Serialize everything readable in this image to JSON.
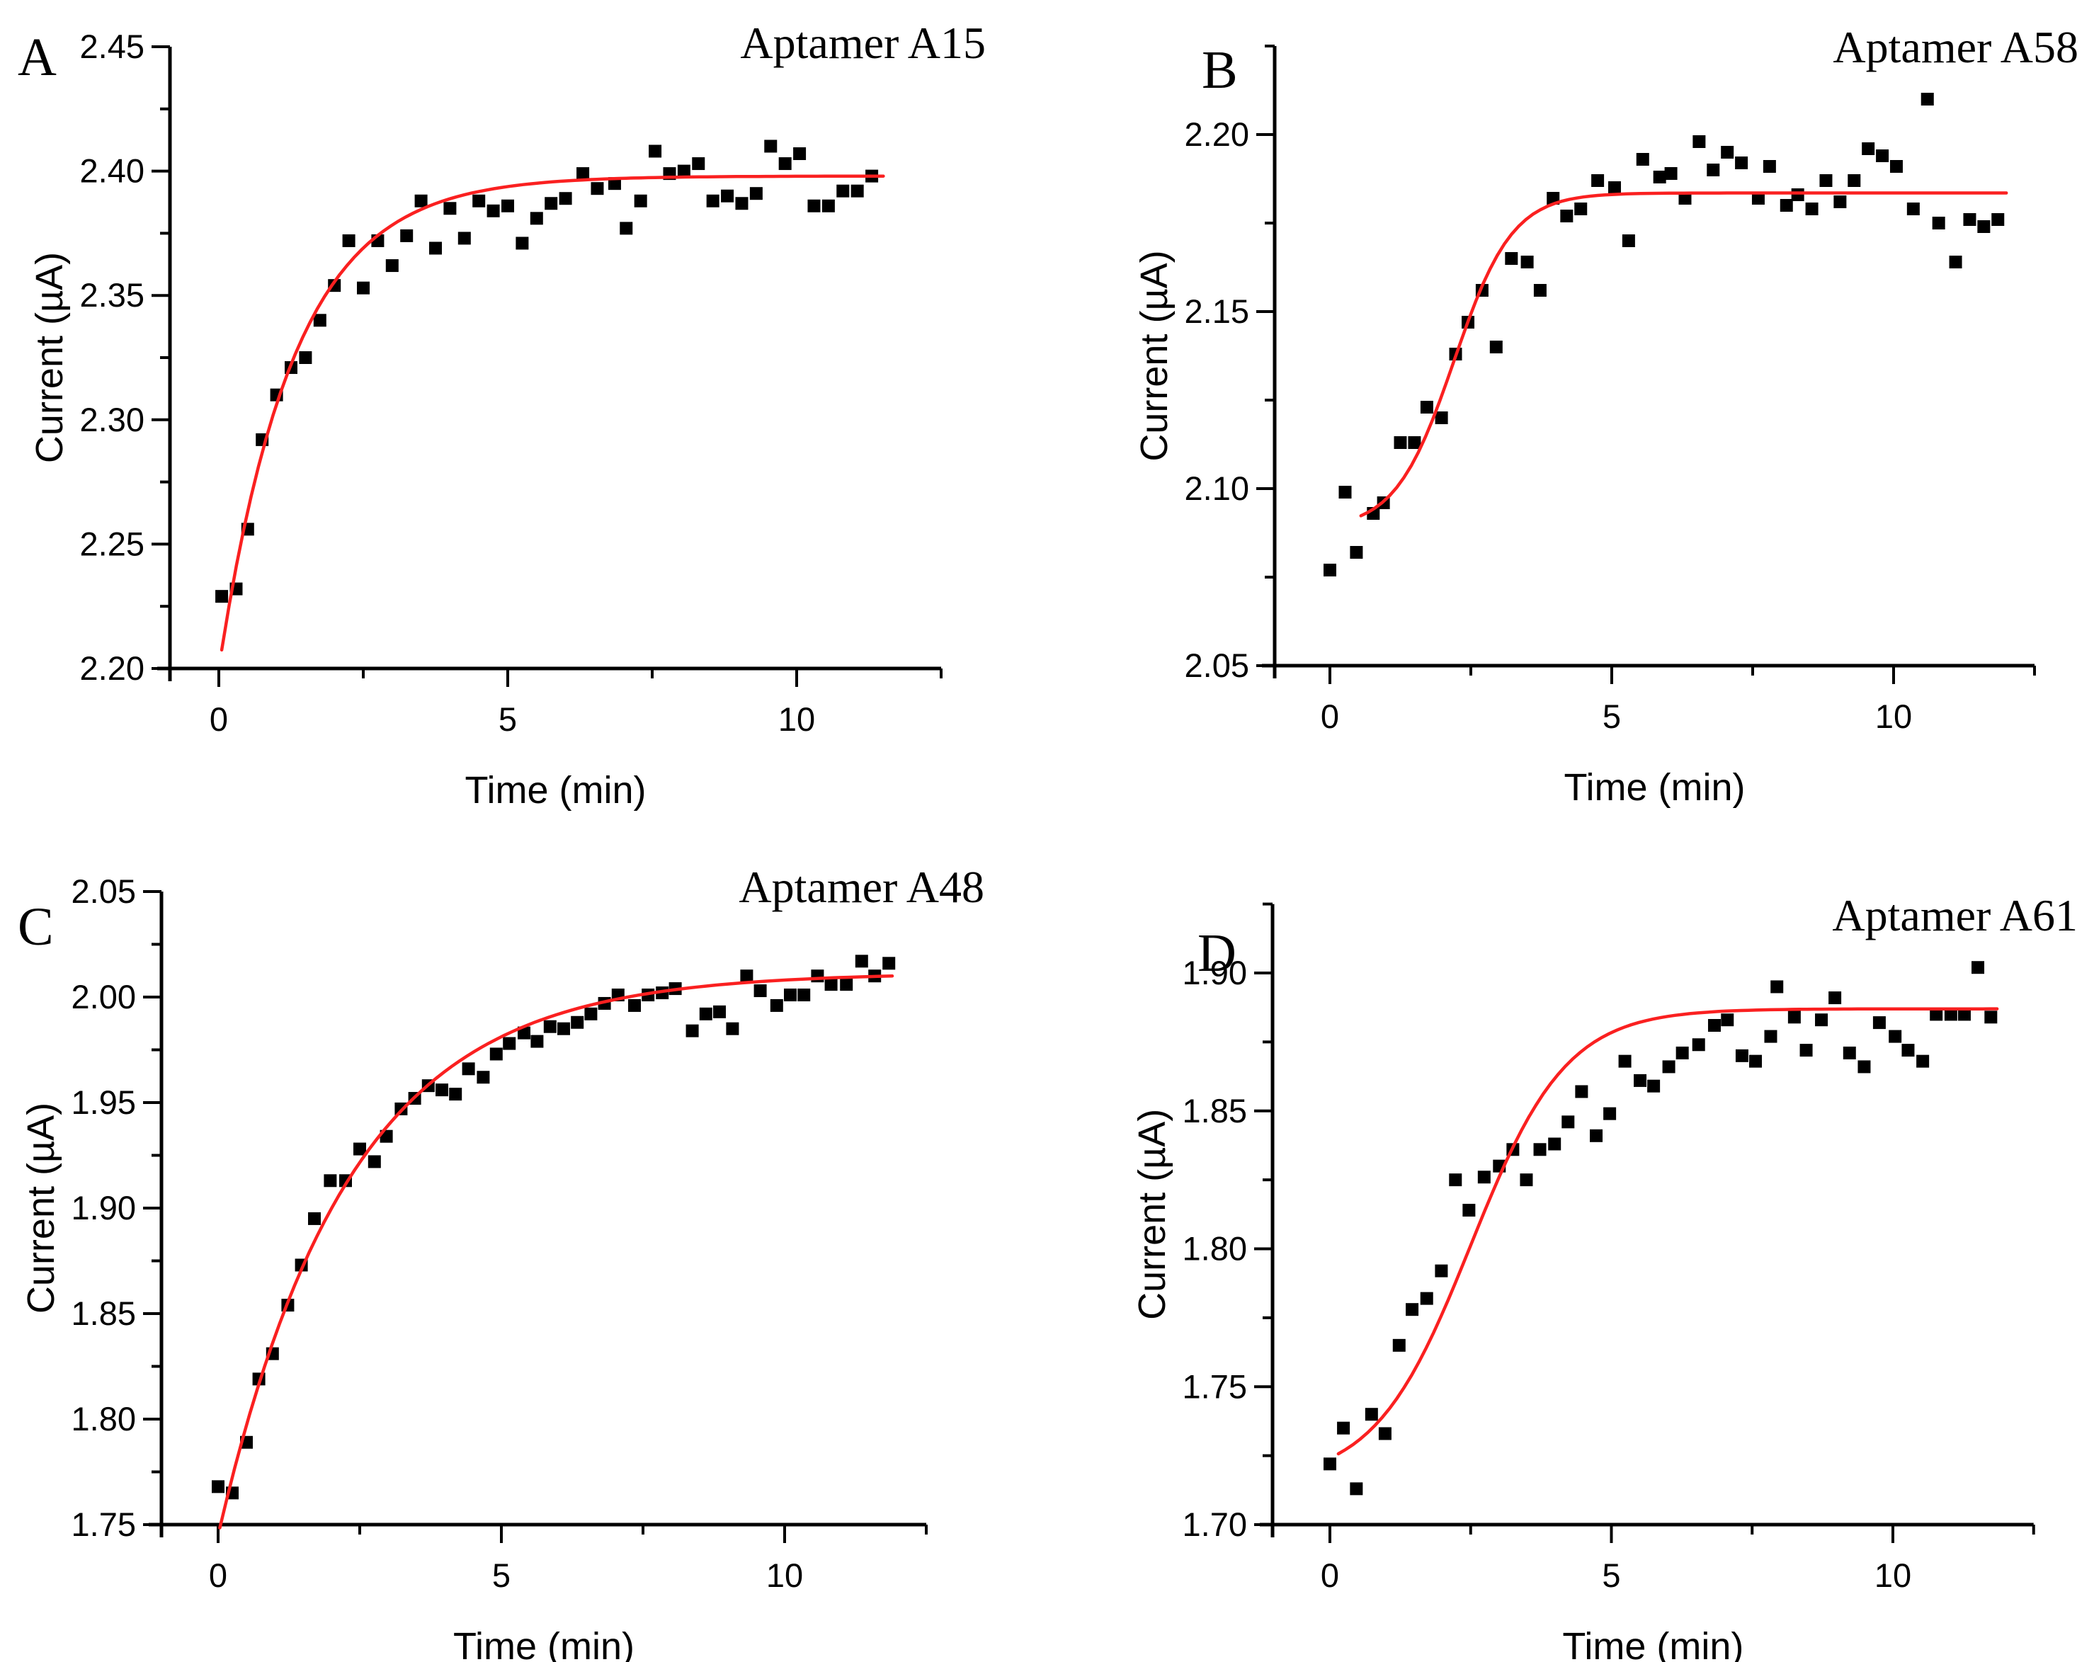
{
  "chart_data": [
    {
      "panel_label": "A",
      "title": "Aptamer A15",
      "type": "scatter",
      "xlabel": "Time (min)",
      "ylabel": "Current (µA)",
      "x_ticks": [
        0,
        5,
        10
      ],
      "x_minor_ticks": [
        2.5,
        7.5,
        12.5
      ],
      "xlim": [
        -0.85,
        12.5
      ],
      "y_ticks": [
        "2.20",
        "2.25",
        "2.30",
        "2.35",
        "2.40",
        "2.45"
      ],
      "y_minor_step": 0.025,
      "ylim": [
        2.2,
        2.45
      ],
      "marker_color": "#000000",
      "fit_line_color": "#fa2020",
      "fit": {
        "model": "exponential",
        "y0": 2.2,
        "plateau": 2.398,
        "tau": 1.3,
        "t_start": 0.05,
        "t_end": 11.5
      },
      "points": [
        [
          0.05,
          2.229
        ],
        [
          0.3,
          2.232
        ],
        [
          0.5,
          2.256
        ],
        [
          0.75,
          2.292
        ],
        [
          1.0,
          2.31
        ],
        [
          1.25,
          2.321
        ],
        [
          1.5,
          2.325
        ],
        [
          1.75,
          2.34
        ],
        [
          2.0,
          2.354
        ],
        [
          2.25,
          2.372
        ],
        [
          2.5,
          2.353
        ],
        [
          2.75,
          2.372
        ],
        [
          3.0,
          2.362
        ],
        [
          3.25,
          2.374
        ],
        [
          3.5,
          2.388
        ],
        [
          3.75,
          2.369
        ],
        [
          4.0,
          2.385
        ],
        [
          4.25,
          2.373
        ],
        [
          4.5,
          2.388
        ],
        [
          4.75,
          2.384
        ],
        [
          5.0,
          2.386
        ],
        [
          5.25,
          2.371
        ],
        [
          5.5,
          2.381
        ],
        [
          5.75,
          2.387
        ],
        [
          6.0,
          2.389
        ],
        [
          6.3,
          2.399
        ],
        [
          6.55,
          2.393
        ],
        [
          6.85,
          2.395
        ],
        [
          7.05,
          2.377
        ],
        [
          7.3,
          2.388
        ],
        [
          7.55,
          2.408
        ],
        [
          7.8,
          2.399
        ],
        [
          8.05,
          2.4
        ],
        [
          8.3,
          2.403
        ],
        [
          8.55,
          2.388
        ],
        [
          8.8,
          2.39
        ],
        [
          9.05,
          2.387
        ],
        [
          9.3,
          2.391
        ],
        [
          9.55,
          2.41
        ],
        [
          9.8,
          2.403
        ],
        [
          10.05,
          2.407
        ],
        [
          10.3,
          2.386
        ],
        [
          10.55,
          2.386
        ],
        [
          10.8,
          2.392
        ],
        [
          11.05,
          2.392
        ],
        [
          11.3,
          2.398
        ]
      ]
    },
    {
      "panel_label": "B",
      "title": "Aptamer A58",
      "type": "scatter",
      "xlabel": "Time (min)",
      "ylabel": "Current (µA)",
      "x_ticks": [
        0,
        5,
        10
      ],
      "x_minor_ticks": [
        2.5,
        7.5,
        12.5
      ],
      "xlim": [
        -1.0,
        12.5
      ],
      "y_ticks": [
        "2.05",
        "2.10",
        "2.15",
        "2.20"
      ],
      "y_minor_step": 0.025,
      "ylim": [
        2.05,
        2.225
      ],
      "marker_color": "#000000",
      "fit_line_color": "#fa2020",
      "fit": {
        "model": "logistic",
        "base": 2.0885,
        "amplitude": 0.095,
        "t_mid": 2.2,
        "rate": 0.52,
        "t_start": 0.55,
        "t_end": 12.0
      },
      "points": [
        [
          0.0,
          2.077
        ],
        [
          0.27,
          2.099
        ],
        [
          0.47,
          2.082
        ],
        [
          0.77,
          2.093
        ],
        [
          0.95,
          2.096
        ],
        [
          1.25,
          2.113
        ],
        [
          1.5,
          2.113
        ],
        [
          1.72,
          2.123
        ],
        [
          1.98,
          2.12
        ],
        [
          2.23,
          2.138
        ],
        [
          2.45,
          2.147
        ],
        [
          2.7,
          2.156
        ],
        [
          2.95,
          2.14
        ],
        [
          3.22,
          2.165
        ],
        [
          3.5,
          2.164
        ],
        [
          3.73,
          2.156
        ],
        [
          3.96,
          2.182
        ],
        [
          4.2,
          2.177
        ],
        [
          4.45,
          2.179
        ],
        [
          4.75,
          2.187
        ],
        [
          5.05,
          2.185
        ],
        [
          5.3,
          2.17
        ],
        [
          5.55,
          2.193
        ],
        [
          5.85,
          2.188
        ],
        [
          6.05,
          2.189
        ],
        [
          6.3,
          2.182
        ],
        [
          6.55,
          2.198
        ],
        [
          6.8,
          2.19
        ],
        [
          7.05,
          2.195
        ],
        [
          7.3,
          2.192
        ],
        [
          7.6,
          2.182
        ],
        [
          7.8,
          2.191
        ],
        [
          8.1,
          2.18
        ],
        [
          8.3,
          2.183
        ],
        [
          8.55,
          2.179
        ],
        [
          8.8,
          2.187
        ],
        [
          9.05,
          2.181
        ],
        [
          9.3,
          2.187
        ],
        [
          9.55,
          2.196
        ],
        [
          9.8,
          2.194
        ],
        [
          10.05,
          2.191
        ],
        [
          10.35,
          2.179
        ],
        [
          10.6,
          2.21
        ],
        [
          10.8,
          2.175
        ],
        [
          11.1,
          2.164
        ],
        [
          11.35,
          2.176
        ],
        [
          11.6,
          2.174
        ],
        [
          11.85,
          2.176
        ]
      ]
    },
    {
      "panel_label": "C",
      "title": "Aptamer A48",
      "type": "scatter",
      "xlabel": "Time (min)",
      "ylabel": "Current (µA)",
      "x_ticks": [
        0,
        5,
        10
      ],
      "x_minor_ticks": [
        2.5,
        7.5,
        12.5
      ],
      "xlim": [
        -1.0,
        12.5
      ],
      "y_ticks": [
        "1.75",
        "1.80",
        "1.85",
        "1.90",
        "1.95",
        "2.00",
        "2.05"
      ],
      "y_minor_step": 0.025,
      "ylim": [
        1.75,
        2.05
      ],
      "marker_color": "#000000",
      "fit_line_color": "#fa2020",
      "fit": {
        "model": "exponential",
        "y0": 1.745,
        "plateau": 2.0115,
        "tau": 2.3,
        "t_start": 0.03,
        "t_end": 11.9
      },
      "points": [
        [
          0.0,
          1.768
        ],
        [
          0.25,
          1.765
        ],
        [
          0.5,
          1.789
        ],
        [
          0.72,
          1.819
        ],
        [
          0.96,
          1.831
        ],
        [
          1.23,
          1.854
        ],
        [
          1.47,
          1.873
        ],
        [
          1.7,
          1.895
        ],
        [
          1.98,
          1.913
        ],
        [
          2.25,
          1.913
        ],
        [
          2.5,
          1.928
        ],
        [
          2.76,
          1.922
        ],
        [
          2.97,
          1.934
        ],
        [
          3.23,
          1.947
        ],
        [
          3.47,
          1.952
        ],
        [
          3.71,
          1.958
        ],
        [
          3.95,
          1.956
        ],
        [
          4.19,
          1.954
        ],
        [
          4.42,
          1.966
        ],
        [
          4.68,
          1.962
        ],
        [
          4.91,
          1.973
        ],
        [
          5.14,
          1.978
        ],
        [
          5.4,
          1.983
        ],
        [
          5.63,
          1.979
        ],
        [
          5.86,
          1.986
        ],
        [
          6.1,
          1.985
        ],
        [
          6.34,
          1.988
        ],
        [
          6.58,
          1.992
        ],
        [
          6.82,
          1.997
        ],
        [
          7.06,
          2.001
        ],
        [
          7.35,
          1.996
        ],
        [
          7.59,
          2.001
        ],
        [
          7.84,
          2.002
        ],
        [
          8.07,
          2.004
        ],
        [
          8.37,
          1.984
        ],
        [
          8.61,
          1.992
        ],
        [
          8.85,
          1.993
        ],
        [
          9.08,
          1.985
        ],
        [
          9.33,
          2.01
        ],
        [
          9.57,
          2.003
        ],
        [
          9.86,
          1.996
        ],
        [
          10.1,
          2.001
        ],
        [
          10.34,
          2.001
        ],
        [
          10.58,
          2.01
        ],
        [
          10.82,
          2.006
        ],
        [
          11.09,
          2.006
        ],
        [
          11.36,
          2.017
        ],
        [
          11.59,
          2.01
        ],
        [
          11.84,
          2.016
        ]
      ]
    },
    {
      "panel_label": "D",
      "title": "Aptamer A61",
      "type": "scatter",
      "xlabel": "Time (min)",
      "ylabel": "Current (µA)",
      "x_ticks": [
        0,
        5,
        10
      ],
      "x_minor_ticks": [
        2.5,
        7.5,
        12.5
      ],
      "xlim": [
        -1.0,
        12.5
      ],
      "y_ticks": [
        "1.70",
        "1.75",
        "1.80",
        "1.85",
        "1.90"
      ],
      "y_minor_step": 0.025,
      "ylim": [
        1.7,
        1.925
      ],
      "marker_color": "#000000",
      "fit_line_color": "#fa2020",
      "fit": {
        "model": "logistic",
        "base": 1.7155,
        "amplitude": 0.1715,
        "t_mid": 2.5,
        "rate": 0.85,
        "t_start": 0.15,
        "t_end": 11.85
      },
      "points": [
        [
          0.0,
          1.722
        ],
        [
          0.24,
          1.735
        ],
        [
          0.47,
          1.713
        ],
        [
          0.74,
          1.74
        ],
        [
          0.98,
          1.733
        ],
        [
          1.23,
          1.765
        ],
        [
          1.46,
          1.778
        ],
        [
          1.72,
          1.782
        ],
        [
          1.98,
          1.792
        ],
        [
          2.23,
          1.825
        ],
        [
          2.47,
          1.814
        ],
        [
          2.74,
          1.826
        ],
        [
          3.01,
          1.83
        ],
        [
          3.25,
          1.836
        ],
        [
          3.49,
          1.825
        ],
        [
          3.73,
          1.836
        ],
        [
          3.99,
          1.838
        ],
        [
          4.23,
          1.846
        ],
        [
          4.47,
          1.857
        ],
        [
          4.73,
          1.841
        ],
        [
          4.97,
          1.849
        ],
        [
          5.24,
          1.868
        ],
        [
          5.51,
          1.861
        ],
        [
          5.75,
          1.859
        ],
        [
          6.02,
          1.866
        ],
        [
          6.26,
          1.871
        ],
        [
          6.55,
          1.874
        ],
        [
          6.83,
          1.881
        ],
        [
          7.06,
          1.883
        ],
        [
          7.32,
          1.87
        ],
        [
          7.56,
          1.868
        ],
        [
          7.83,
          1.877
        ],
        [
          7.94,
          1.895
        ],
        [
          8.25,
          1.884
        ],
        [
          8.46,
          1.872
        ],
        [
          8.73,
          1.883
        ],
        [
          8.97,
          1.891
        ],
        [
          9.23,
          1.871
        ],
        [
          9.49,
          1.866
        ],
        [
          9.76,
          1.882
        ],
        [
          10.04,
          1.877
        ],
        [
          10.27,
          1.872
        ],
        [
          10.53,
          1.868
        ],
        [
          10.77,
          1.885
        ],
        [
          11.03,
          1.885
        ],
        [
          11.27,
          1.885
        ],
        [
          11.51,
          1.902
        ],
        [
          11.74,
          1.884
        ]
      ]
    }
  ]
}
